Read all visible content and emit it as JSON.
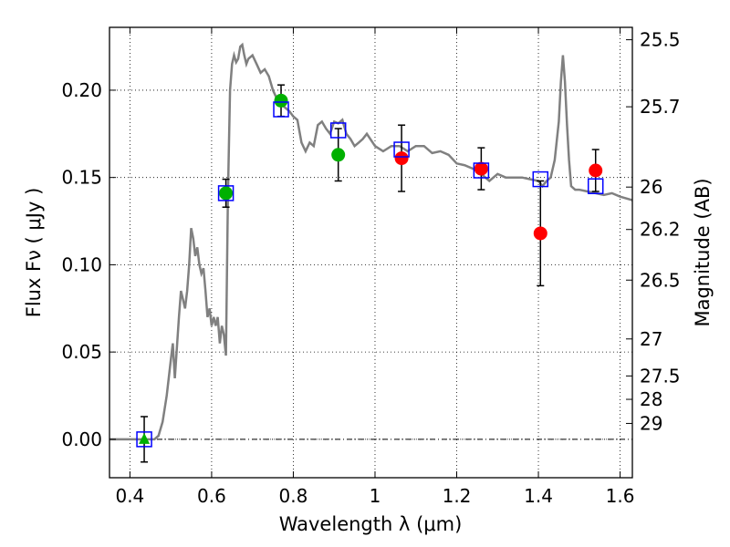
{
  "chart_data": {
    "type": "scatter",
    "title": "",
    "xlabel": "Wavelength  λ (μm)",
    "ylabel": "Flux  Fν  ( μJy )",
    "y2label": "Magnitude (AB)",
    "xlim": [
      0.35,
      1.63
    ],
    "ylim": [
      -0.022,
      0.236
    ],
    "grid": true,
    "xticks": [
      0.4,
      0.6,
      0.8,
      1.0,
      1.2,
      1.4,
      1.6
    ],
    "xtick_labels": [
      "0.4",
      "0.6",
      "0.8",
      "1",
      "1.2",
      "1.4",
      "1.6"
    ],
    "yticks": [
      0.0,
      0.05,
      0.1,
      0.15,
      0.2
    ],
    "ytick_labels": [
      "0.00",
      "0.05",
      "0.10",
      "0.15",
      "0.20"
    ],
    "mag_ticks": [
      {
        "label": "25.5",
        "flux": 0.2289
      },
      {
        "label": "25.7",
        "flux": 0.1905
      },
      {
        "label": "26",
        "flux": 0.1445
      },
      {
        "label": "26.2",
        "flux": 0.1202
      },
      {
        "label": "26.5",
        "flux": 0.0912
      },
      {
        "label": "27",
        "flux": 0.0575
      },
      {
        "label": "27.5",
        "flux": 0.0363
      },
      {
        "label": "28",
        "flux": 0.0229
      },
      {
        "label": "29",
        "flux": 0.0091
      }
    ],
    "colors": {
      "model": "#808080",
      "green": "#00b000",
      "red": "#ff0000",
      "model_box": "#0000ff",
      "errorbar": "#000000"
    },
    "model_spectrum": {
      "x": [
        0.35,
        0.46,
        0.47,
        0.48,
        0.49,
        0.5,
        0.505,
        0.51,
        0.52,
        0.525,
        0.53,
        0.535,
        0.54,
        0.545,
        0.55,
        0.555,
        0.56,
        0.565,
        0.57,
        0.575,
        0.58,
        0.585,
        0.59,
        0.595,
        0.6,
        0.605,
        0.61,
        0.615,
        0.62,
        0.625,
        0.63,
        0.635,
        0.64,
        0.645,
        0.65,
        0.655,
        0.66,
        0.665,
        0.67,
        0.675,
        0.68,
        0.685,
        0.69,
        0.7,
        0.71,
        0.72,
        0.73,
        0.74,
        0.75,
        0.76,
        0.77,
        0.78,
        0.79,
        0.8,
        0.81,
        0.82,
        0.83,
        0.84,
        0.85,
        0.86,
        0.87,
        0.88,
        0.89,
        0.9,
        0.91,
        0.92,
        0.93,
        0.94,
        0.95,
        0.96,
        0.97,
        0.98,
        1.0,
        1.02,
        1.04,
        1.06,
        1.08,
        1.1,
        1.12,
        1.14,
        1.16,
        1.18,
        1.2,
        1.22,
        1.24,
        1.26,
        1.28,
        1.3,
        1.32,
        1.34,
        1.36,
        1.38,
        1.4,
        1.41,
        1.42,
        1.43,
        1.44,
        1.45,
        1.455,
        1.46,
        1.465,
        1.47,
        1.475,
        1.48,
        1.49,
        1.5,
        1.52,
        1.54,
        1.56,
        1.58,
        1.6,
        1.63
      ],
      "y": [
        0.0,
        0.0,
        0.002,
        0.01,
        0.025,
        0.045,
        0.055,
        0.035,
        0.07,
        0.085,
        0.08,
        0.075,
        0.085,
        0.1,
        0.121,
        0.115,
        0.105,
        0.11,
        0.1,
        0.095,
        0.098,
        0.085,
        0.07,
        0.075,
        0.065,
        0.07,
        0.065,
        0.07,
        0.055,
        0.065,
        0.06,
        0.048,
        0.14,
        0.2,
        0.215,
        0.22,
        0.216,
        0.218,
        0.225,
        0.226,
        0.22,
        0.215,
        0.218,
        0.22,
        0.215,
        0.21,
        0.212,
        0.208,
        0.2,
        0.195,
        0.192,
        0.19,
        0.188,
        0.185,
        0.183,
        0.17,
        0.165,
        0.17,
        0.168,
        0.18,
        0.182,
        0.178,
        0.175,
        0.182,
        0.181,
        0.183,
        0.175,
        0.172,
        0.168,
        0.17,
        0.172,
        0.175,
        0.168,
        0.165,
        0.168,
        0.168,
        0.165,
        0.168,
        0.168,
        0.164,
        0.165,
        0.163,
        0.158,
        0.157,
        0.155,
        0.152,
        0.148,
        0.152,
        0.15,
        0.15,
        0.15,
        0.149,
        0.148,
        0.145,
        0.148,
        0.15,
        0.16,
        0.182,
        0.205,
        0.22,
        0.205,
        0.18,
        0.16,
        0.145,
        0.143,
        0.143,
        0.142,
        0.141,
        0.14,
        0.141,
        0.139,
        0.137
      ]
    },
    "model_boxes": {
      "x": [
        0.435,
        0.635,
        0.77,
        0.91,
        1.065,
        1.26,
        1.405,
        1.54
      ],
      "y": [
        0.0,
        0.141,
        0.189,
        0.177,
        0.166,
        0.154,
        0.149,
        0.145
      ]
    },
    "observations": {
      "x": [
        0.435,
        0.635,
        0.77,
        0.91,
        1.065,
        1.26,
        1.405,
        1.54
      ],
      "y": [
        0.0,
        0.141,
        0.194,
        0.163,
        0.161,
        0.155,
        0.118,
        0.154
      ],
      "yerr": [
        0.013,
        0.008,
        0.009,
        0.015,
        0.019,
        0.012,
        0.03,
        0.012
      ],
      "markers": [
        "triangle",
        "circle",
        "circle",
        "circle",
        "circle",
        "circle",
        "circle",
        "circle"
      ],
      "colors": [
        "green",
        "green",
        "green",
        "green",
        "red",
        "red",
        "red",
        "red"
      ]
    }
  }
}
